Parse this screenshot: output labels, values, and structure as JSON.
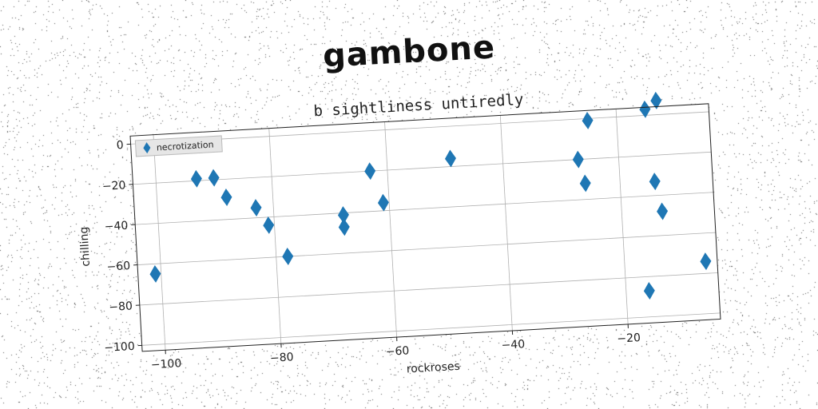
{
  "suptitle": "gambone",
  "chart_data": {
    "type": "scatter",
    "title": "b sightliness untiredly",
    "xlabel": "rockroses",
    "ylabel": "chilling",
    "xlim": [
      -104,
      -4
    ],
    "ylim": [
      -103,
      4
    ],
    "xticks": [
      -100,
      -80,
      -60,
      -40,
      -20
    ],
    "yticks": [
      0,
      -20,
      -40,
      -60,
      -80,
      -100
    ],
    "grid": true,
    "legend_position": "top-left",
    "series": [
      {
        "name": "necrotization",
        "color": "#1f77b4",
        "marker": "diamond",
        "x": [
          -101,
          -93,
          -90,
          -88,
          -83,
          -81,
          -78,
          -68,
          -68,
          -63,
          -61,
          -49,
          -27,
          -26,
          -25,
          -16,
          -15,
          -14,
          -13,
          -13,
          -6
        ],
        "y": [
          -65,
          -19,
          -19,
          -29,
          -35,
          -44,
          -60,
          -41,
          -47,
          -20,
          -36,
          -16,
          -20,
          -32,
          -1,
          -87,
          3,
          -33,
          7,
          -48,
          -74
        ]
      }
    ]
  }
}
